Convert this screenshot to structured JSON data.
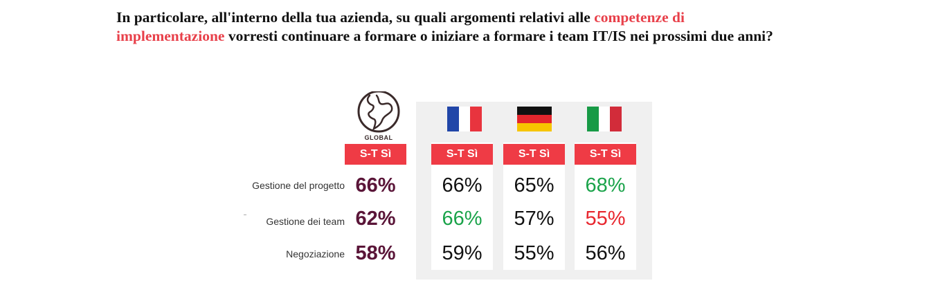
{
  "title": {
    "part1": "In particolare, all'interno della tua azienda, su quali argomenti relativi alle ",
    "highlight1": "competenze di",
    "highlight2": "implementazione",
    "part2": " vorresti continuare a formare o iniziare a formare i team IT/IS nei prossimi due anni?",
    "highlight_color": "#e8404a"
  },
  "icons": {
    "global": "globe-icon",
    "france": "france-flag-icon",
    "germany": "germany-flag-icon",
    "italy": "italy-flag-icon"
  },
  "global_label": "GLOBAL",
  "chart_data": {
    "type": "table",
    "columns": [
      {
        "key": "global",
        "header": "S-T Sì"
      },
      {
        "key": "france",
        "header": "S-T Sì"
      },
      {
        "key": "germany",
        "header": "S-T Sì"
      },
      {
        "key": "italy",
        "header": "S-T Sì"
      }
    ],
    "rows": [
      {
        "label": "Gestione del progetto",
        "values": [
          {
            "text": "66%",
            "value": 66,
            "color": "#5a1538"
          },
          {
            "text": "66%",
            "value": 66,
            "color": "#111111"
          },
          {
            "text": "65%",
            "value": 65,
            "color": "#111111"
          },
          {
            "text": "68%",
            "value": 68,
            "color": "#1aa34a"
          }
        ]
      },
      {
        "label": "Gestione dei team",
        "values": [
          {
            "text": "62%",
            "value": 62,
            "color": "#5a1538"
          },
          {
            "text": "66%",
            "value": 66,
            "color": "#1aa34a"
          },
          {
            "text": "57%",
            "value": 57,
            "color": "#111111"
          },
          {
            "text": "55%",
            "value": 55,
            "color": "#e8262e"
          }
        ]
      },
      {
        "label": "Negoziazione",
        "values": [
          {
            "text": "58%",
            "value": 58,
            "color": "#5a1538"
          },
          {
            "text": "59%",
            "value": 59,
            "color": "#111111"
          },
          {
            "text": "55%",
            "value": 55,
            "color": "#111111"
          },
          {
            "text": "56%",
            "value": 56,
            "color": "#111111"
          }
        ]
      }
    ],
    "colors": {
      "badge": "#ef3b45",
      "global_value": "#5a1538",
      "above_average": "#1aa34a",
      "below_average": "#e8262e",
      "panel": "#f0f0f0"
    }
  }
}
